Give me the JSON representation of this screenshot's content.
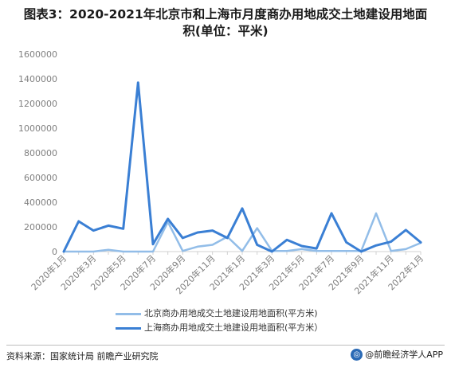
{
  "header": {
    "title_line1": "图表3：2020-2021年北京市和上海市月度商办用地成交土地建设用地面",
    "title_line2": "积(单位：平米)"
  },
  "footer": {
    "source": "资料来源：国家统计局 前瞻产业研究院",
    "brand": "@前瞻经济学人APP",
    "brand_icon": "logo-icon"
  },
  "colors": {
    "beijing": "#92bde8",
    "shanghai": "#3a7fd4",
    "axis_text": "#7f7f7f",
    "axis_line": "#d0d0d0"
  },
  "chart_data": {
    "type": "line",
    "title": "图表3：2020-2021年北京市和上海市月度商办用地成交土地建设用地面积(单位：平米)",
    "x": [
      "2020年1月",
      "2020年2月",
      "2020年3月",
      "2020年4月",
      "2020年5月",
      "2020年6月",
      "2020年7月",
      "2020年8月",
      "2020年9月",
      "2020年10月",
      "2020年11月",
      "2020年12月",
      "2021年1月",
      "2021年2月",
      "2021年3月",
      "2021年4月",
      "2021年5月",
      "2021年6月",
      "2021年7月",
      "2021年8月",
      "2021年9月",
      "2021年10月",
      "2021年11月",
      "2021年12月",
      "2022年1月"
    ],
    "xtick_labels": [
      "2020年1月",
      "2020年3月",
      "2020年5月",
      "2020年7月",
      "2020年9月",
      "2020年11月",
      "2021年1月",
      "2021年3月",
      "2021年5月",
      "2021年7月",
      "2021年9月",
      "2021年11月",
      "2022年1月"
    ],
    "yticks": [
      0,
      200000,
      400000,
      600000,
      800000,
      1000000,
      1200000,
      1400000,
      1600000
    ],
    "ylim": [
      0,
      1600000
    ],
    "series": [
      {
        "name": "北京商办用地成交土地建设用地面积(平方米)",
        "values": [
          0,
          0,
          0,
          15000,
          0,
          0,
          0,
          240000,
          5000,
          40000,
          55000,
          120000,
          5000,
          190000,
          5000,
          5000,
          20000,
          5000,
          5000,
          5000,
          5000,
          310000,
          5000,
          20000,
          70000
        ]
      },
      {
        "name": "上海商办用地成交土地建设用地面积(平方米）",
        "values": [
          0,
          245000,
          170000,
          210000,
          185000,
          1370000,
          60000,
          265000,
          110000,
          155000,
          170000,
          110000,
          350000,
          55000,
          0,
          95000,
          45000,
          25000,
          310000,
          75000,
          0,
          50000,
          80000,
          175000,
          75000
        ]
      }
    ],
    "legend_position": "bottom",
    "grid": false
  }
}
